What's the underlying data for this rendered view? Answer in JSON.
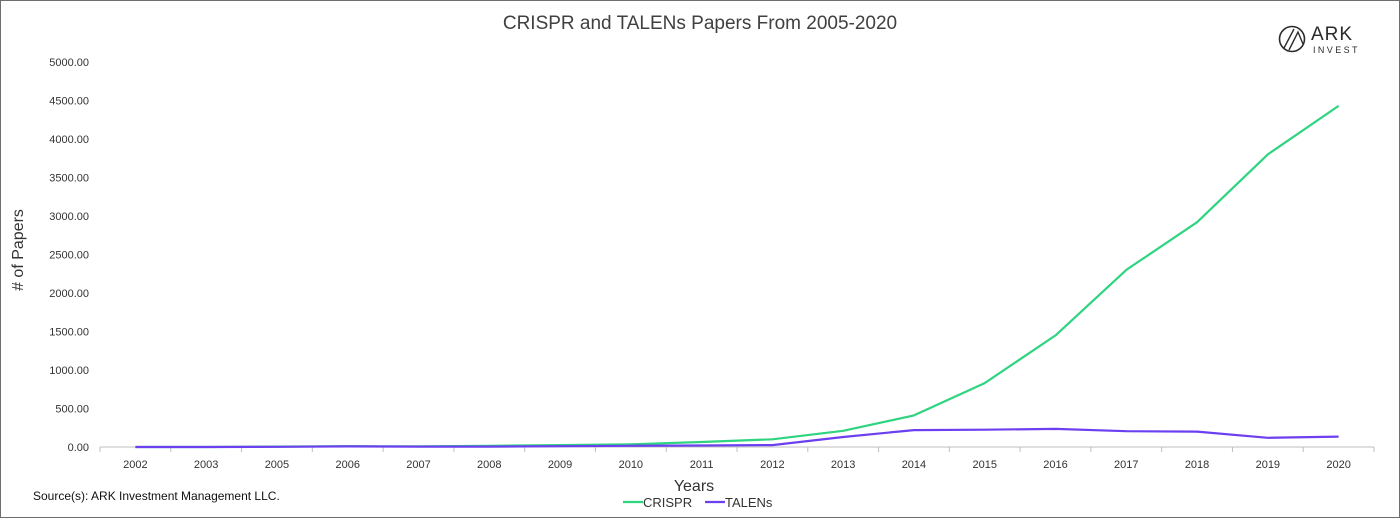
{
  "source": "Source(s): ARK Investment Management LLC.",
  "logo": {
    "word": "ARK",
    "sub": "INVEST"
  },
  "colors": {
    "crispr": "#2ed47f",
    "talens": "#6c3ff0",
    "axis": "#bfbfbf"
  },
  "chart_data": {
    "type": "line",
    "title": "CRISPR and TALENs Papers From 2005-2020",
    "xlabel": "Years",
    "ylabel": "# of Papers",
    "categories": [
      "2002",
      "2003",
      "2005",
      "2006",
      "2007",
      "2008",
      "2009",
      "2010",
      "2011",
      "2012",
      "2013",
      "2014",
      "2015",
      "2016",
      "2017",
      "2018",
      "2019",
      "2020"
    ],
    "ylim": [
      0,
      5000
    ],
    "yticks": [
      "0.00",
      "500.00",
      "1000.00",
      "1500.00",
      "2000.00",
      "2500.00",
      "3000.00",
      "3500.00",
      "4000.00",
      "4500.00",
      "5000.00"
    ],
    "grid": false,
    "legend_position": "bottom",
    "series": [
      {
        "name": "CRISPR",
        "values": [
          0,
          0,
          5,
          10,
          8,
          15,
          25,
          35,
          65,
          100,
          210,
          410,
          830,
          1450,
          2300,
          2920,
          3800,
          4430
        ]
      },
      {
        "name": "TALENs",
        "values": [
          0,
          0,
          2,
          8,
          5,
          5,
          10,
          15,
          20,
          25,
          130,
          220,
          225,
          235,
          205,
          200,
          120,
          135
        ]
      }
    ]
  }
}
